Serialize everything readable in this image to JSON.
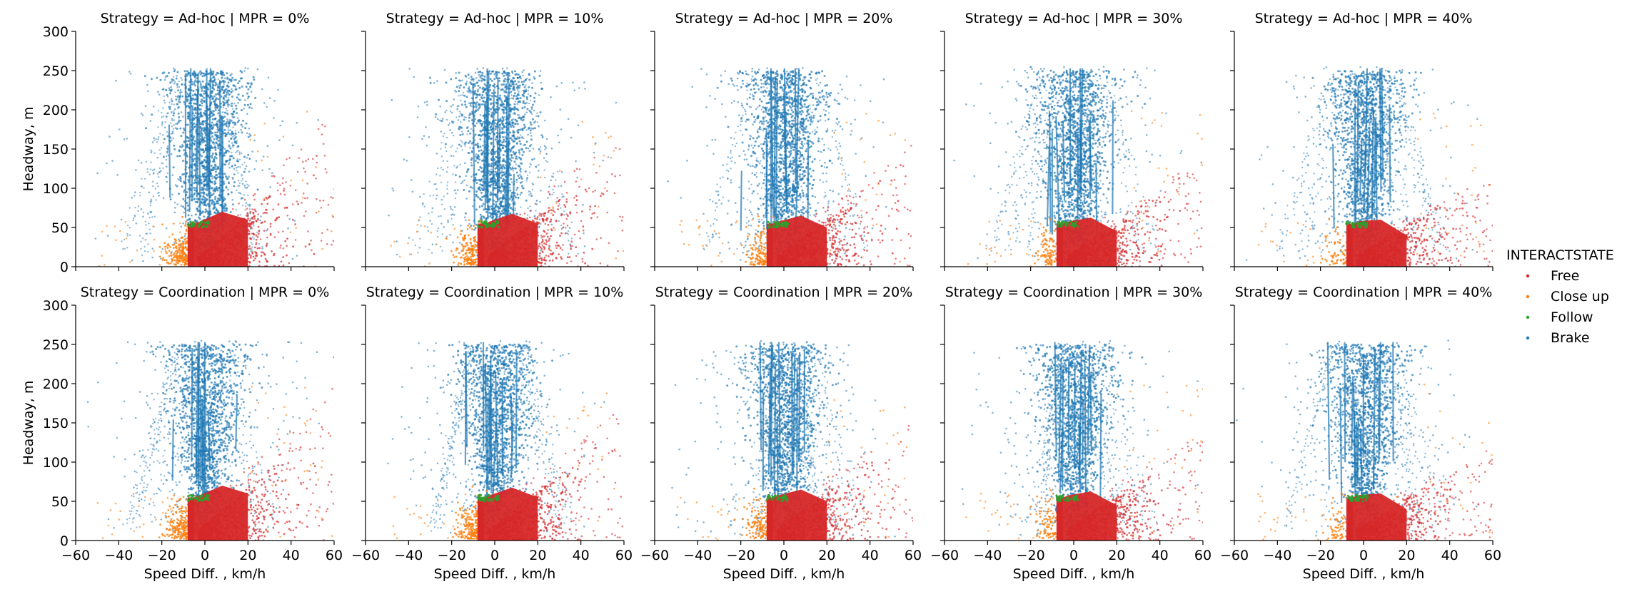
{
  "chart_data": {
    "type": "scatter",
    "layout": "facet-grid 2 rows x 5 columns",
    "xlabel": "Speed Diff. , km/h",
    "ylabel": "Headway, m",
    "xlim": [
      -60,
      60
    ],
    "ylim": [
      0,
      300
    ],
    "xticks": [
      -60,
      -40,
      -20,
      0,
      20,
      40,
      60
    ],
    "yticks": [
      0,
      50,
      100,
      150,
      200,
      250,
      300
    ],
    "xtick_labels": [
      "−60",
      "−40",
      "−20",
      "0",
      "20",
      "40",
      "60"
    ],
    "ytick_labels": [
      "0",
      "50",
      "100",
      "150",
      "200",
      "250",
      "300"
    ],
    "rows": [
      {
        "strategy": "Ad-hoc",
        "titles": [
          "Strategy = Ad-hoc | MPR = 0%",
          "Strategy = Ad-hoc | MPR = 10%",
          "Strategy = Ad-hoc | MPR = 20%",
          "Strategy = Ad-hoc | MPR = 30%",
          "Strategy = Ad-hoc | MPR = 40%"
        ]
      },
      {
        "strategy": "Coordination",
        "titles": [
          "Strategy = Coordination | MPR = 0%",
          "Strategy = Coordination | MPR = 10%",
          "Strategy = Coordination | MPR = 20%",
          "Strategy = Coordination | MPR = 30%",
          "Strategy = Coordination | MPR = 40%"
        ]
      }
    ],
    "mpr_levels": [
      "0%",
      "10%",
      "20%",
      "30%",
      "40%"
    ],
    "legend": {
      "title": "INTERACTSTATE",
      "placement": "right",
      "entries": [
        {
          "label": "Free",
          "color": "#d62728"
        },
        {
          "label": "Close up",
          "color": "#ff7f0e"
        },
        {
          "label": "Follow",
          "color": "#2ca02c"
        },
        {
          "label": "Brake",
          "color": "#1f77b4"
        }
      ]
    },
    "series_regions": [
      {
        "state": "Brake",
        "color": "#1f77b4",
        "core_x_range": [
          -10,
          10
        ],
        "core_y_range": [
          30,
          255
        ],
        "scatter_x_range": [
          -55,
          55
        ],
        "scatter_y_range": [
          0,
          255
        ]
      },
      {
        "state": "Free",
        "color": "#d62728",
        "core_x_range": [
          -8,
          20
        ],
        "core_y_range": [
          0,
          60
        ],
        "scatter_x_range": [
          -5,
          60
        ],
        "scatter_y_range": [
          0,
          200
        ]
      },
      {
        "state": "Close up",
        "color": "#ff7f0e",
        "core_x_range": [
          -15,
          -3
        ],
        "core_y_range": [
          0,
          50
        ],
        "scatter_x_range": [
          -50,
          60
        ],
        "scatter_y_range": [
          0,
          200
        ]
      },
      {
        "state": "Follow",
        "color": "#2ca02c",
        "core_x_range": [
          -8,
          3
        ],
        "core_y_range": [
          40,
          58
        ],
        "scatter_x_range": [
          -8,
          3
        ],
        "scatter_y_range": [
          40,
          58
        ]
      }
    ]
  }
}
